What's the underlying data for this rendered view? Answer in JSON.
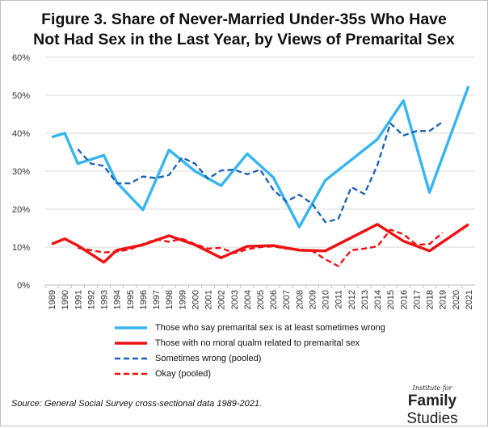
{
  "chart_data": {
    "type": "line",
    "title": [
      "Figure 3. Share of Never-Married Under-35s Who Have",
      "Not Had Sex in the Last Year, by Views of Premarital Sex"
    ],
    "x": [
      "1989",
      "1990",
      "1991",
      "1992",
      "1993",
      "1994",
      "1995",
      "1996",
      "1997",
      "1998",
      "1999",
      "2000",
      "2001",
      "2002",
      "2003",
      "2004",
      "2005",
      "2006",
      "2007",
      "2008",
      "2009",
      "2010",
      "2011",
      "2012",
      "2013",
      "2014",
      "2015",
      "2016",
      "2017",
      "2018",
      "2019",
      "2020",
      "2021"
    ],
    "ylim": [
      0,
      60
    ],
    "yticks": [
      "0%",
      "10%",
      "20%",
      "30%",
      "40%",
      "50%",
      "60%"
    ],
    "grid": true,
    "series": [
      {
        "name": "Those who say premarital sex is at least sometimes wrong",
        "color": "#36B6F0",
        "dash": "solid",
        "points": [
          [
            1989,
            39
          ],
          [
            1990,
            40
          ],
          [
            1991,
            32
          ],
          [
            1993,
            34.2
          ],
          [
            1994,
            27
          ],
          [
            1996,
            19.8
          ],
          [
            1998,
            35.6
          ],
          [
            2000,
            30
          ],
          [
            2002,
            26.2
          ],
          [
            2004,
            34.6
          ],
          [
            2006,
            28.4
          ],
          [
            2008,
            15.3
          ],
          [
            2010,
            27.6
          ],
          [
            2014,
            38.4
          ],
          [
            2016,
            48.6
          ],
          [
            2018,
            24.4
          ],
          [
            2021,
            52.4
          ]
        ]
      },
      {
        "name": "Those with no moral qualm related to premarital sex",
        "color": "#EE1111",
        "dash": "solid",
        "points": [
          [
            1989,
            10.8
          ],
          [
            1990,
            12.2
          ],
          [
            1991,
            10.4
          ],
          [
            1993,
            6
          ],
          [
            1994,
            9.2
          ],
          [
            1996,
            10.6
          ],
          [
            1998,
            13
          ],
          [
            2000,
            10.6
          ],
          [
            2002,
            7.2
          ],
          [
            2004,
            10.2
          ],
          [
            2006,
            10.4
          ],
          [
            2008,
            9.2
          ],
          [
            2010,
            9
          ],
          [
            2014,
            16
          ],
          [
            2016,
            11.6
          ],
          [
            2018,
            9
          ],
          [
            2021,
            16
          ]
        ]
      },
      {
        "name": "Sometimes wrong (pooled)",
        "color": "#1F64B4",
        "dash": "dashed",
        "points": [
          [
            1991,
            35.8
          ],
          [
            1992,
            32
          ],
          [
            1993,
            31.4
          ],
          [
            1994,
            26.8
          ],
          [
            1995,
            26.8
          ],
          [
            1996,
            28.6
          ],
          [
            1997,
            28.2
          ],
          [
            1998,
            29
          ],
          [
            1999,
            33.6
          ],
          [
            2000,
            32
          ],
          [
            2001,
            28
          ],
          [
            2002,
            30.2
          ],
          [
            2003,
            30.4
          ],
          [
            2004,
            29.2
          ],
          [
            2005,
            30.4
          ],
          [
            2006,
            25.2
          ],
          [
            2007,
            22
          ],
          [
            2008,
            23.8
          ],
          [
            2009,
            21.4
          ],
          [
            2010,
            16.6
          ],
          [
            2011,
            17.4
          ],
          [
            2012,
            25.8
          ],
          [
            2013,
            24
          ],
          [
            2014,
            31.6
          ],
          [
            2015,
            42.6
          ],
          [
            2016,
            39.4
          ],
          [
            2017,
            40.6
          ],
          [
            2018,
            40.6
          ],
          [
            2019,
            43
          ]
        ]
      },
      {
        "name": "Okay (pooled)",
        "color": "#EE1111",
        "dash": "dashed",
        "points": [
          [
            1991,
            9.8
          ],
          [
            1992,
            9.2
          ],
          [
            1993,
            8.6
          ],
          [
            1994,
            8.8
          ],
          [
            1995,
            9.4
          ],
          [
            1996,
            10.8
          ],
          [
            1997,
            12
          ],
          [
            1998,
            11.4
          ],
          [
            1999,
            12.2
          ],
          [
            2000,
            10.8
          ],
          [
            2001,
            9.6
          ],
          [
            2002,
            9.8
          ],
          [
            2003,
            8.4
          ],
          [
            2004,
            9.4
          ],
          [
            2005,
            10
          ],
          [
            2006,
            10.2
          ],
          [
            2007,
            9.6
          ],
          [
            2008,
            9.4
          ],
          [
            2009,
            9
          ],
          [
            2010,
            6.8
          ],
          [
            2011,
            5
          ],
          [
            2012,
            9.2
          ],
          [
            2013,
            9.6
          ],
          [
            2014,
            10.2
          ],
          [
            2015,
            14.6
          ],
          [
            2016,
            13.4
          ],
          [
            2017,
            10.6
          ],
          [
            2018,
            10.8
          ],
          [
            2019,
            13.8
          ]
        ]
      }
    ],
    "source": "Source: General Social Survey cross-sectional data 1989-2021.",
    "logo": {
      "top": "Institute for",
      "word1": "Family",
      "word2": " Studies"
    }
  }
}
